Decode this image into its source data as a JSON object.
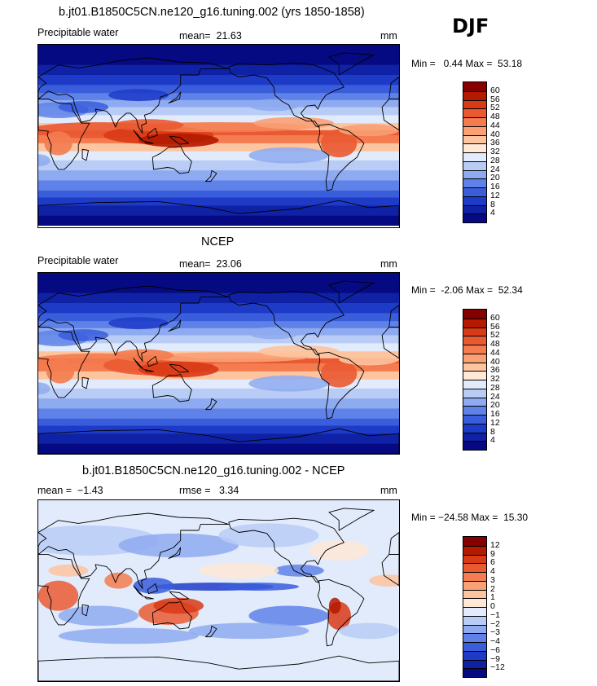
{
  "season": "DJF",
  "panels": [
    {
      "title": "b.jt01.B1850C5CN.ne120_g16.tuning.002 (yrs 1850-1858)",
      "variable": "Precipitable water",
      "stat_left": "",
      "stat_mid": "mean=  21.63",
      "units": "mm",
      "minmax": "Min =   0.44 Max =  53.18",
      "kind": "abs",
      "levels": [
        "60",
        "56",
        "52",
        "48",
        "44",
        "40",
        "36",
        "32",
        "28",
        "24",
        "20",
        "16",
        "12",
        "8",
        "4"
      ],
      "colors": [
        "#870000",
        "#b31a00",
        "#d93a16",
        "#ea5a32",
        "#f47c50",
        "#f9a074",
        "#fdc4a0",
        "#ffe8d6",
        "#e2ebfb",
        "#b8ccf6",
        "#8eaaf0",
        "#5f82e8",
        "#3a5ddc",
        "#1e3bc8",
        "#0f22a6",
        "#060a82"
      ]
    },
    {
      "title": "NCEP",
      "variable": "Precipitable water",
      "stat_left": "",
      "stat_mid": "mean=  23.06",
      "units": "mm",
      "minmax": "Min =  -2.06 Max =  52.34",
      "kind": "abs",
      "levels": [
        "60",
        "56",
        "52",
        "48",
        "44",
        "40",
        "36",
        "32",
        "28",
        "24",
        "20",
        "16",
        "12",
        "8",
        "4"
      ],
      "colors": [
        "#870000",
        "#b31a00",
        "#d93a16",
        "#ea5a32",
        "#f47c50",
        "#f9a074",
        "#fdc4a0",
        "#ffe8d6",
        "#e2ebfb",
        "#b8ccf6",
        "#8eaaf0",
        "#5f82e8",
        "#3a5ddc",
        "#1e3bc8",
        "#0f22a6",
        "#060a82"
      ]
    },
    {
      "title": "b.jt01.B1850C5CN.ne120_g16.tuning.002 - NCEP",
      "variable": "",
      "stat_left": "mean =  −1.43",
      "stat_mid": "rmse =   3.34",
      "units": "mm",
      "minmax": "Min = −24.58 Max =  15.30",
      "kind": "diff",
      "levels": [
        "12",
        "9",
        "6",
        "4",
        "3",
        "2",
        "1",
        "0",
        "−1",
        "−2",
        "−3",
        "−4",
        "−6",
        "−9",
        "−12"
      ],
      "colors": [
        "#870000",
        "#b31a00",
        "#d93a16",
        "#ea5a32",
        "#f47c50",
        "#f9a074",
        "#fdc4a0",
        "#ffe8d6",
        "#e2ebfb",
        "#b8ccf6",
        "#8eaaf0",
        "#5f82e8",
        "#3a5ddc",
        "#1e3bc8",
        "#0f22a6",
        "#060a82"
      ]
    }
  ]
}
